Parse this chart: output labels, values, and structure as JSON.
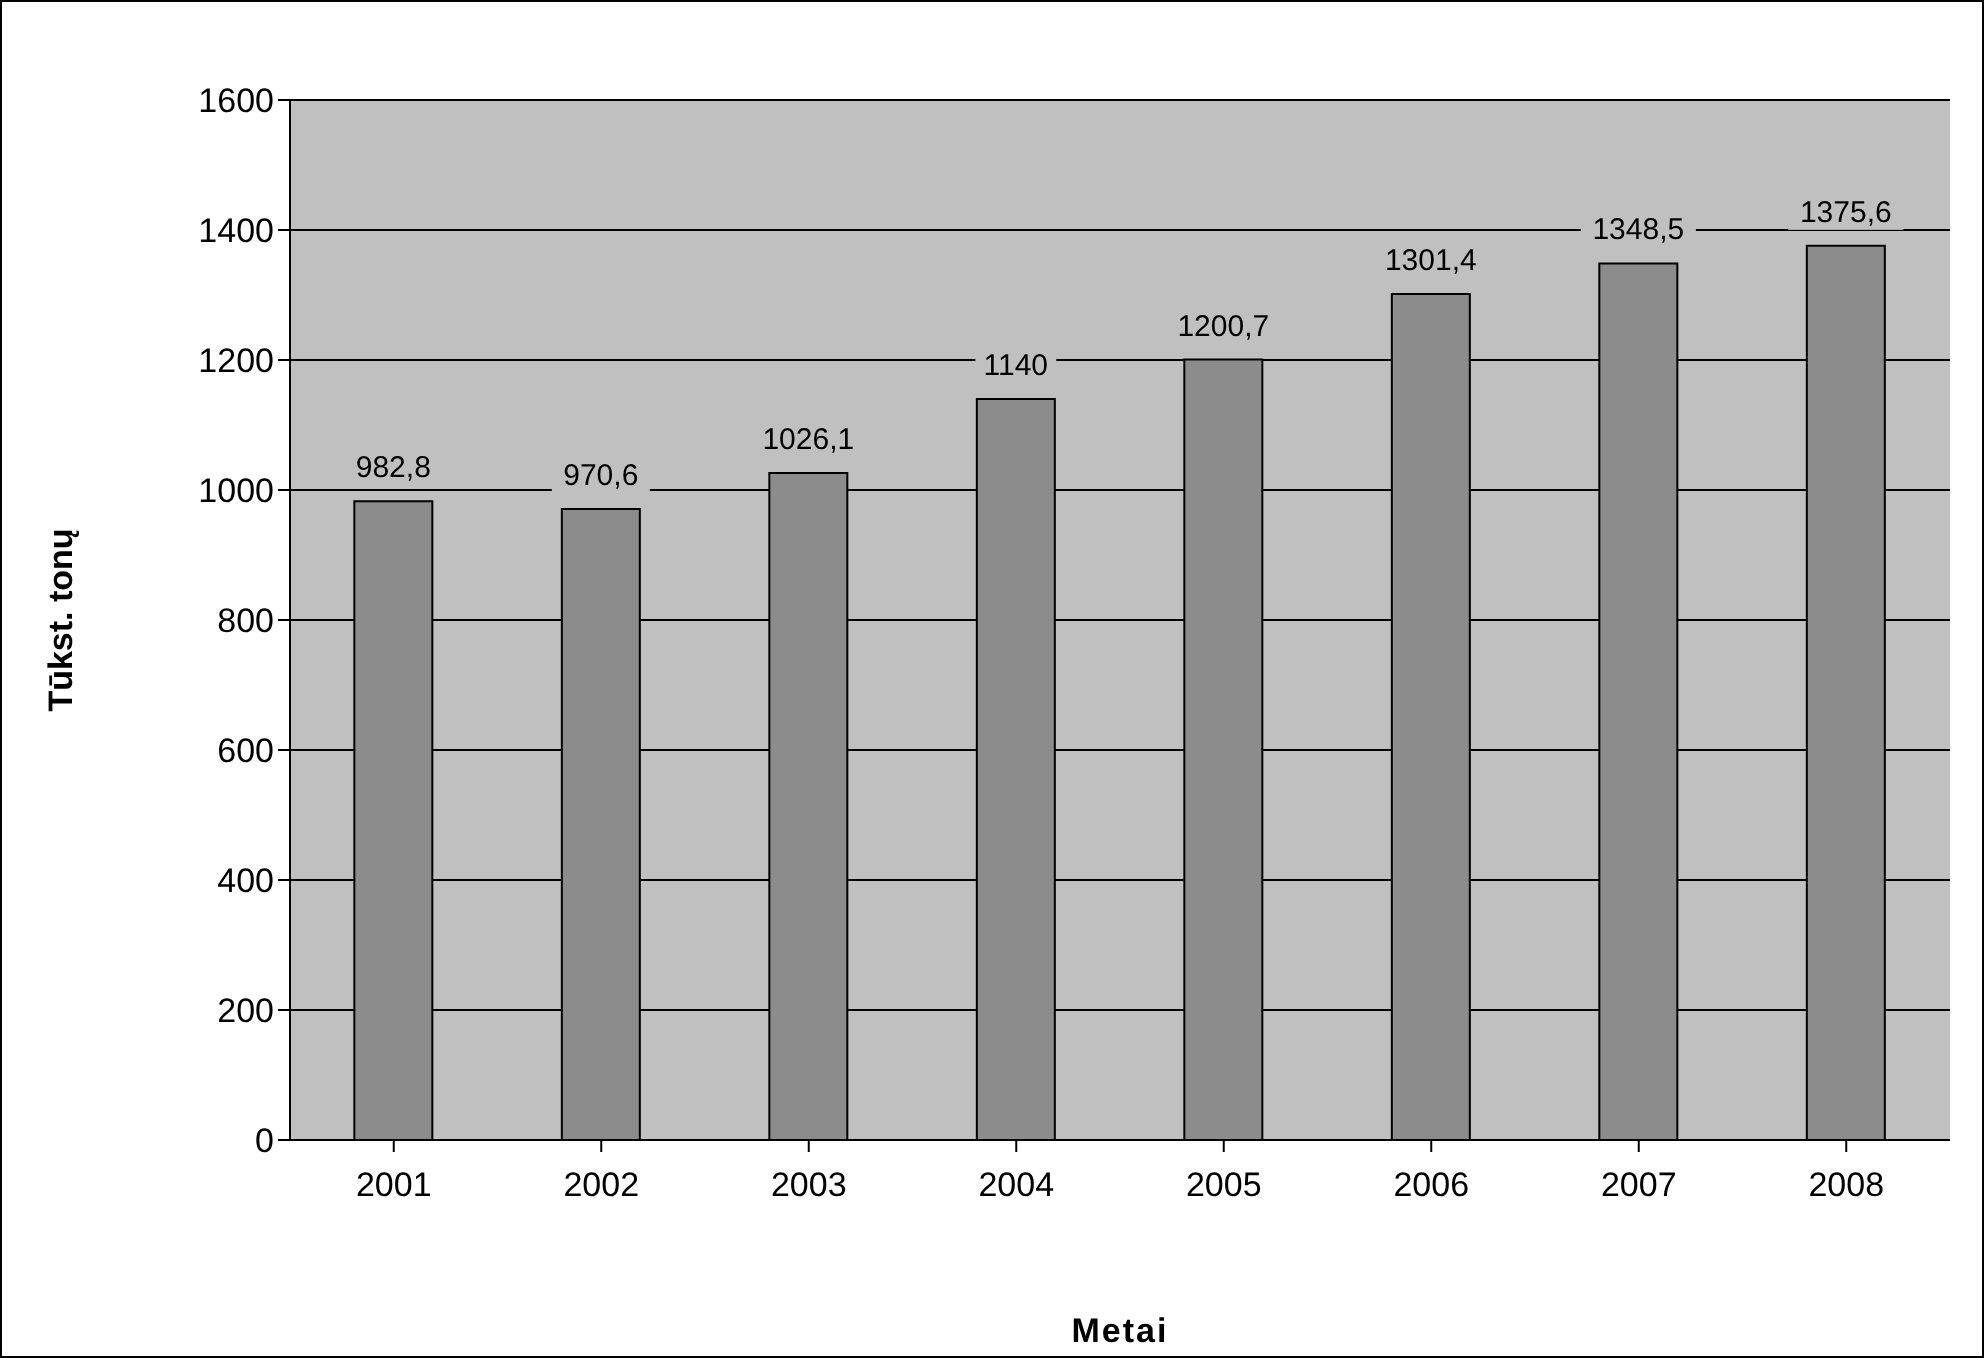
{
  "chart_data": {
    "type": "bar",
    "xlabel": "Metai",
    "ylabel": "Tūkst. tonų",
    "categories": [
      "2001",
      "2002",
      "2003",
      "2004",
      "2005",
      "2006",
      "2007",
      "2008"
    ],
    "values": [
      982.8,
      970.6,
      1026.1,
      1140,
      1200.7,
      1301.4,
      1348.5,
      1375.6
    ],
    "value_labels": [
      "982,8",
      "970,6",
      "1026,1",
      "1140",
      "1200,7",
      "1301,4",
      "1348,5",
      "1375,6"
    ],
    "color": "#8c8c8c",
    "ylim": [
      0,
      1600
    ],
    "yticks": [
      0,
      200,
      400,
      600,
      800,
      1000,
      1200,
      1400,
      1600
    ],
    "grid": "y"
  }
}
